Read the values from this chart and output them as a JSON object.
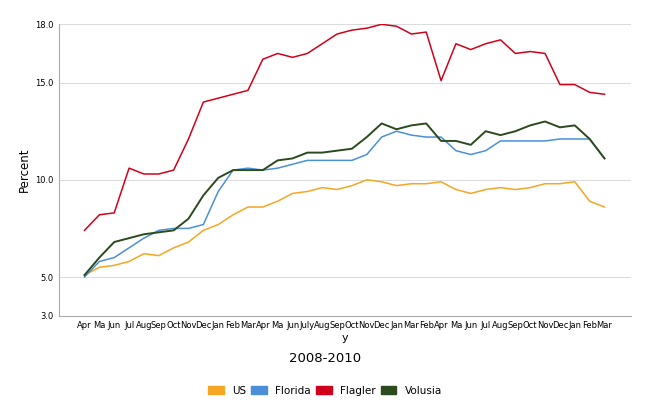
{
  "title": "2008-2010",
  "ylabel": "Percent",
  "xlabel": "y",
  "ylim": [
    3.0,
    18.0
  ],
  "yticks": [
    3.0,
    5.0,
    10.0,
    15.0,
    18.0
  ],
  "ytick_labels": [
    "3.0",
    "5.0",
    "10.0",
    "15.0",
    "18.0"
  ],
  "x_labels": [
    "Apr",
    "Ma",
    "Jun",
    "Jul",
    "Aug",
    "Sep",
    "Oct",
    "Nov",
    "Dec",
    "Jan",
    "Feb",
    "Mar",
    "Apr",
    "Ma",
    "Jun",
    "July",
    "Aug",
    "Sep",
    "Oct",
    "Nov",
    "Dec",
    "Jan",
    "Mar",
    "Feb",
    "Apr",
    "Ma",
    "Jun",
    "Jul",
    "Aug",
    "Sep",
    "Oct",
    "Nov",
    "Dec",
    "Jan",
    "Feb",
    "Mar"
  ],
  "legend": [
    "US",
    "Florida",
    "Flagler",
    "Volusia"
  ],
  "colors": {
    "US": "#F5A623",
    "Florida": "#4A90D9",
    "Flagler": "#D0021B",
    "Volusia": "#2C4A1E"
  },
  "US": [
    5.1,
    5.5,
    5.6,
    5.8,
    6.2,
    6.1,
    6.5,
    6.8,
    7.4,
    7.7,
    8.2,
    8.6,
    8.6,
    8.9,
    9.3,
    9.4,
    9.6,
    9.5,
    9.7,
    10.0,
    9.9,
    9.7,
    9.8,
    9.8,
    9.9,
    9.5,
    9.3,
    9.5,
    9.6,
    9.5,
    9.6,
    9.8,
    9.8,
    9.9,
    8.9,
    8.6
  ],
  "Florida": [
    5.0,
    5.8,
    6.0,
    6.5,
    7.0,
    7.4,
    7.5,
    7.5,
    7.7,
    9.4,
    10.5,
    10.6,
    10.5,
    10.6,
    10.8,
    11.0,
    11.0,
    11.0,
    11.0,
    11.3,
    12.2,
    12.5,
    12.3,
    12.2,
    12.2,
    11.5,
    11.3,
    11.5,
    12.0,
    12.0,
    12.0,
    12.0,
    12.1,
    12.1,
    12.1,
    11.1
  ],
  "Flagler": [
    7.4,
    8.2,
    8.3,
    10.6,
    10.3,
    10.3,
    10.5,
    12.1,
    14.0,
    14.2,
    14.4,
    14.6,
    16.2,
    16.5,
    16.3,
    16.5,
    17.0,
    17.5,
    17.7,
    17.8,
    18.0,
    17.9,
    17.5,
    17.6,
    15.1,
    17.0,
    16.7,
    17.0,
    17.2,
    16.5,
    16.6,
    16.5,
    14.9,
    14.9,
    14.5,
    14.4
  ],
  "Volusia": [
    5.1,
    6.0,
    6.8,
    7.0,
    7.2,
    7.3,
    7.4,
    8.0,
    9.2,
    10.1,
    10.5,
    10.5,
    10.5,
    11.0,
    11.1,
    11.4,
    11.4,
    11.5,
    11.6,
    12.2,
    12.9,
    12.6,
    12.8,
    12.9,
    12.0,
    12.0,
    11.8,
    12.5,
    12.3,
    12.5,
    12.8,
    13.0,
    12.7,
    12.8,
    12.1,
    11.1
  ],
  "background_color": "#FFFFFF",
  "grid_color": "#CCCCCC",
  "figsize": [
    6.5,
    4.05
  ],
  "dpi": 100
}
